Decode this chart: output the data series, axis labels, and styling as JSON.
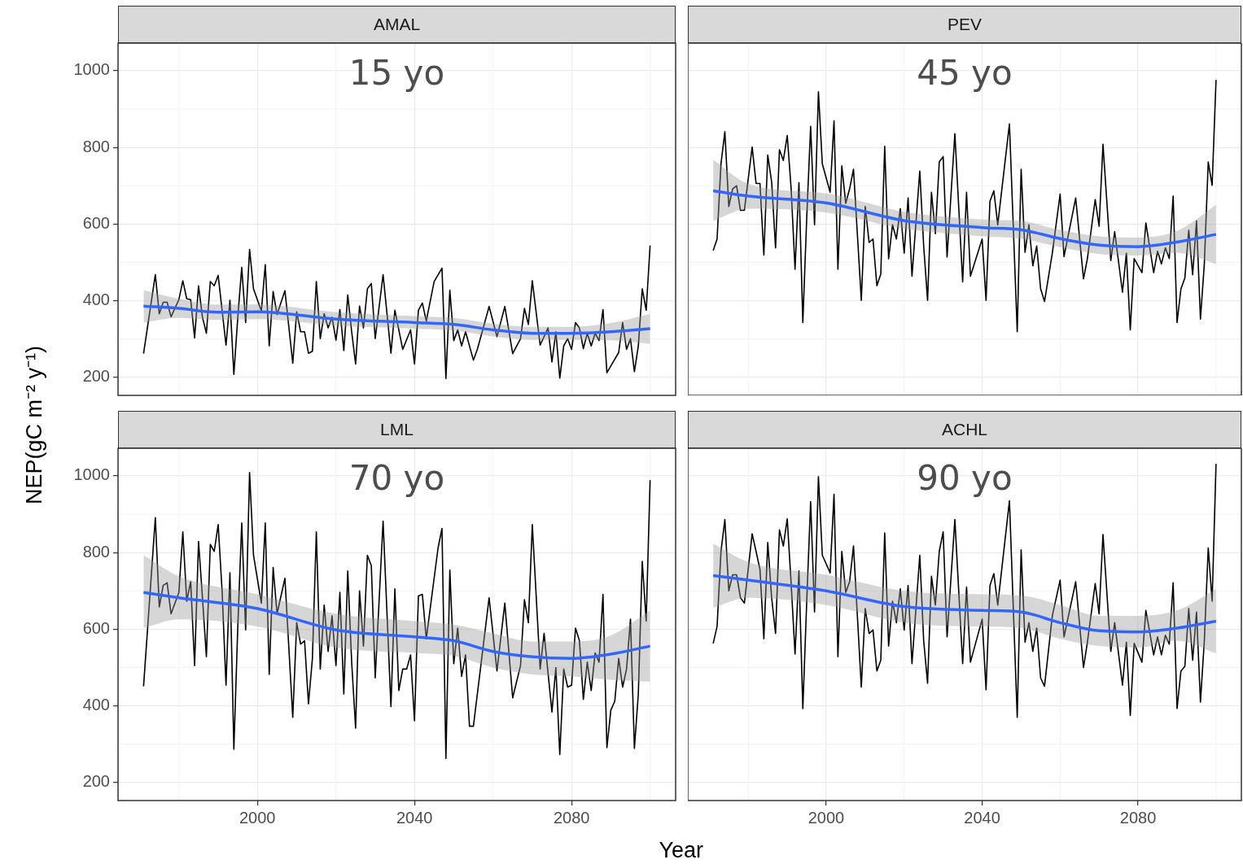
{
  "chart_data": [
    {
      "type": "line",
      "title": "AMAL",
      "annotations": [
        "15 yo"
      ],
      "xlim": [
        1964.5,
        2106.5
      ],
      "ylim": [
        153,
        1072
      ],
      "xticks": [
        2000,
        2040,
        2080
      ],
      "yticks": [
        200,
        400,
        600,
        800,
        1000
      ],
      "grid": true,
      "legend": false,
      "marker": "none",
      "line_style": "solid",
      "tick_labels": "y",
      "series": [
        {
          "color": "#000000",
          "x": [
            1971,
            1974,
            1975,
            1976,
            1977,
            1978,
            1980,
            1981,
            1982,
            1983,
            1984,
            1985,
            1986,
            1987,
            1988,
            1989,
            1990,
            1991,
            1992,
            1993,
            1994,
            1995,
            1996,
            1997,
            1998,
            1999,
            2001,
            2002,
            2003,
            2004,
            2005,
            2007,
            2009,
            2010,
            2011,
            2012,
            2013,
            2014,
            2015,
            2016,
            2017,
            2018,
            2019,
            2020,
            2021,
            2022,
            2023,
            2024,
            2025,
            2026,
            2027,
            2028,
            2029,
            2030,
            2032,
            2034,
            2035,
            2037,
            2039,
            2040,
            2041,
            2042,
            2043,
            2045,
            2047,
            2048,
            2049,
            2050,
            2051,
            2052,
            2053,
            2055,
            2056,
            2059,
            2061,
            2063,
            2065,
            2067,
            2068,
            2069,
            2070,
            2072,
            2074,
            2075,
            2076,
            2077,
            2078,
            2079,
            2080,
            2081,
            2082,
            2083,
            2084,
            2085,
            2086,
            2087,
            2088,
            2089,
            2092,
            2093,
            2094,
            2095,
            2096,
            2097,
            2098,
            2099,
            2100
          ],
          "values": [
            262,
            468,
            366,
            396,
            396,
            358,
            403,
            452,
            405,
            403,
            303,
            439,
            357,
            315,
            450,
            439,
            466,
            375,
            284,
            401,
            208,
            357,
            487,
            343,
            534,
            431,
            373,
            494,
            282,
            424,
            364,
            426,
            237,
            371,
            319,
            319,
            263,
            268,
            450,
            301,
            366,
            329,
            357,
            297,
            377,
            270,
            415,
            319,
            235,
            386,
            329,
            431,
            445,
            301,
            468,
            263,
            375,
            273,
            324,
            235,
            375,
            394,
            347,
            450,
            485,
            197,
            427,
            296,
            324,
            282,
            319,
            245,
            273,
            385,
            306,
            385,
            262,
            301,
            380,
            338,
            452,
            284,
            329,
            240,
            319,
            198,
            282,
            301,
            273,
            343,
            329,
            275,
            315,
            282,
            315,
            296,
            377,
            212,
            265,
            343,
            273,
            301,
            215,
            282,
            431,
            375,
            544
          ]
        },
        {
          "color": "#3366ff",
          "x": [
            1971,
            1980,
            1990,
            2000,
            2020,
            2040,
            2050,
            2060,
            2070,
            2080,
            2090,
            2100
          ],
          "values": [
            386,
            380,
            370,
            371,
            352,
            343,
            338,
            324,
            315,
            315,
            319,
            327
          ],
          "lower": [
            343,
            355,
            350,
            352,
            335,
            327,
            322,
            307,
            298,
            298,
            297,
            287
          ],
          "upper": [
            428,
            405,
            390,
            390,
            370,
            360,
            355,
            340,
            332,
            332,
            342,
            366
          ]
        }
      ]
    },
    {
      "type": "line",
      "title": "PEV",
      "annotations": [
        "45 yo"
      ],
      "xlim": [
        1964.5,
        2106.5
      ],
      "ylim": [
        153,
        1072
      ],
      "xticks": [
        2000,
        2040,
        2080
      ],
      "yticks": [
        200,
        400,
        600,
        800,
        1000
      ],
      "grid": true,
      "legend": false,
      "marker": "none",
      "line_style": "solid",
      "tick_labels": false,
      "series": [
        {
          "color": "#000000",
          "x": [
            1971,
            1972,
            1973,
            1974,
            1975,
            1976,
            1977,
            1978,
            1979,
            1981,
            1982,
            1983,
            1984,
            1985,
            1986,
            1987,
            1988,
            1989,
            1990,
            1991,
            1992,
            1993,
            1994,
            1995,
            1996,
            1997,
            1998,
            1999,
            2001,
            2002,
            2003,
            2004,
            2005,
            2006,
            2007,
            2009,
            2010,
            2011,
            2012,
            2013,
            2014,
            2015,
            2016,
            2017,
            2018,
            2019,
            2020,
            2021,
            2022,
            2024,
            2025,
            2026,
            2027,
            2028,
            2029,
            2030,
            2031,
            2033,
            2035,
            2036,
            2037,
            2040,
            2041,
            2042,
            2043,
            2044,
            2047,
            2049,
            2050,
            2051,
            2052,
            2053,
            2054,
            2055,
            2056,
            2058,
            2060,
            2061,
            2064,
            2066,
            2067,
            2069,
            2070,
            2071,
            2073,
            2074,
            2076,
            2077,
            2078,
            2079,
            2081,
            2082,
            2084,
            2085,
            2086,
            2087,
            2088,
            2089,
            2090,
            2091,
            2092,
            2093,
            2094,
            2095,
            2096,
            2097,
            2098,
            2099,
            2100
          ],
          "values": [
            531,
            561,
            757,
            841,
            646,
            692,
            700,
            636,
            636,
            801,
            706,
            706,
            519,
            780,
            710,
            538,
            794,
            766,
            831,
            692,
            482,
            708,
            343,
            617,
            855,
            598,
            945,
            757,
            683,
            869,
            482,
            752,
            654,
            692,
            743,
            401,
            646,
            552,
            561,
            439,
            470,
            803,
            509,
            598,
            561,
            640,
            524,
            668,
            464,
            738,
            543,
            401,
            683,
            575,
            762,
            776,
            514,
            836,
            449,
            683,
            464,
            561,
            401,
            659,
            687,
            598,
            861,
            319,
            743,
            526,
            598,
            491,
            543,
            431,
            398,
            524,
            678,
            515,
            668,
            457,
            510,
            664,
            594,
            808,
            505,
            580,
            422,
            524,
            324,
            510,
            473,
            603,
            473,
            529,
            496,
            538,
            510,
            673,
            343,
            431,
            459,
            584,
            468,
            608,
            352,
            496,
            762,
            701,
            976
          ]
        },
        {
          "color": "#3366ff",
          "x": [
            1971,
            1980,
            2000,
            2020,
            2040,
            2050,
            2060,
            2070,
            2080,
            2090,
            2100
          ],
          "values": [
            687,
            673,
            655,
            609,
            591,
            585,
            562,
            545,
            541,
            553,
            573
          ],
          "lower": [
            608,
            640,
            630,
            588,
            568,
            562,
            540,
            522,
            518,
            525,
            496
          ],
          "upper": [
            768,
            705,
            680,
            632,
            612,
            608,
            585,
            568,
            565,
            582,
            650
          ]
        }
      ]
    },
    {
      "type": "line",
      "title": "LML",
      "annotations": [
        "70 yo"
      ],
      "xlabel": "Year",
      "ylabel": "NEP(gC m⁻² y⁻¹)",
      "xlim": [
        1964.5,
        2106.5
      ],
      "ylim": [
        153,
        1072
      ],
      "xticks": [
        2000,
        2040,
        2080
      ],
      "yticks": [
        200,
        400,
        600,
        800,
        1000
      ],
      "grid": true,
      "legend": false,
      "marker": "none",
      "line_style": "solid",
      "series": [
        {
          "color": "#000000",
          "x": [
            1971,
            1974,
            1975,
            1976,
            1977,
            1978,
            1980,
            1981,
            1982,
            1983,
            1984,
            1985,
            1986,
            1987,
            1988,
            1989,
            1990,
            1991,
            1992,
            1993,
            1994,
            1995,
            1996,
            1997,
            1998,
            1999,
            2001,
            2002,
            2003,
            2004,
            2005,
            2007,
            2009,
            2010,
            2011,
            2012,
            2013,
            2014,
            2015,
            2016,
            2017,
            2018,
            2019,
            2020,
            2021,
            2022,
            2023,
            2024,
            2025,
            2026,
            2027,
            2028,
            2029,
            2030,
            2032,
            2034,
            2035,
            2036,
            2037,
            2038,
            2039,
            2040,
            2041,
            2042,
            2043,
            2046,
            2047,
            2048,
            2049,
            2050,
            2051,
            2052,
            2053,
            2054,
            2055,
            2057,
            2059,
            2061,
            2063,
            2065,
            2067,
            2068,
            2069,
            2070,
            2072,
            2073,
            2075,
            2076,
            2077,
            2078,
            2079,
            2080,
            2081,
            2082,
            2083,
            2084,
            2085,
            2086,
            2087,
            2088,
            2089,
            2090,
            2091,
            2092,
            2093,
            2094,
            2095,
            2096,
            2097,
            2098,
            2099,
            2100
          ],
          "values": [
            451,
            891,
            658,
            714,
            721,
            640,
            696,
            854,
            673,
            724,
            505,
            829,
            682,
            528,
            821,
            803,
            873,
            700,
            454,
            747,
            287,
            607,
            877,
            598,
            1009,
            793,
            668,
            877,
            482,
            761,
            640,
            733,
            370,
            617,
            561,
            570,
            405,
            524,
            854,
            496,
            663,
            542,
            635,
            505,
            696,
            431,
            752,
            514,
            342,
            700,
            556,
            793,
            766,
            473,
            882,
            398,
            705,
            440,
            496,
            496,
            533,
            361,
            687,
            691,
            575,
            812,
            863,
            263,
            754,
            510,
            603,
            477,
            533,
            347,
            347,
            514,
            682,
            491,
            668,
            421,
            505,
            677,
            617,
            873,
            496,
            589,
            384,
            500,
            273,
            496,
            449,
            454,
            603,
            570,
            417,
            514,
            440,
            538,
            514,
            691,
            291,
            389,
            412,
            524,
            449,
            496,
            626,
            289,
            431,
            777,
            621,
            989
          ]
        },
        {
          "color": "#3366ff",
          "x": [
            1971,
            1980,
            2000,
            2020,
            2040,
            2050,
            2060,
            2070,
            2080,
            2090,
            2100
          ],
          "values": [
            696,
            682,
            654,
            598,
            580,
            570,
            542,
            528,
            524,
            535,
            556
          ],
          "lower": [
            603,
            626,
            607,
            552,
            538,
            530,
            500,
            482,
            477,
            468,
            463
          ],
          "upper": [
            793,
            738,
            691,
            640,
            621,
            612,
            589,
            568,
            568,
            584,
            649
          ]
        }
      ]
    },
    {
      "type": "line",
      "title": "ACHL",
      "annotations": [
        "90 yo"
      ],
      "xlim": [
        1964.5,
        2106.5
      ],
      "ylim": [
        153,
        1072
      ],
      "xticks": [
        2000,
        2040,
        2080
      ],
      "yticks": [
        200,
        400,
        600,
        800,
        1000
      ],
      "grid": true,
      "legend": false,
      "marker": "none",
      "line_style": "solid",
      "tick_labels": "x",
      "series": [
        {
          "color": "#000000",
          "x": [
            1971,
            1972,
            1973,
            1974,
            1975,
            1976,
            1977,
            1978,
            1979,
            1981,
            1982,
            1983,
            1984,
            1985,
            1986,
            1987,
            1988,
            1989,
            1990,
            1991,
            1992,
            1993,
            1994,
            1995,
            1996,
            1997,
            1998,
            1999,
            2001,
            2002,
            2003,
            2004,
            2005,
            2006,
            2007,
            2009,
            2010,
            2011,
            2012,
            2013,
            2014,
            2015,
            2016,
            2017,
            2018,
            2019,
            2020,
            2021,
            2022,
            2024,
            2025,
            2026,
            2027,
            2028,
            2029,
            2030,
            2031,
            2033,
            2035,
            2036,
            2037,
            2040,
            2041,
            2042,
            2043,
            2044,
            2047,
            2049,
            2050,
            2051,
            2052,
            2053,
            2054,
            2055,
            2056,
            2058,
            2060,
            2061,
            2064,
            2066,
            2067,
            2069,
            2070,
            2071,
            2073,
            2074,
            2076,
            2077,
            2078,
            2079,
            2081,
            2082,
            2084,
            2085,
            2086,
            2087,
            2088,
            2089,
            2090,
            2091,
            2092,
            2093,
            2094,
            2095,
            2096,
            2097,
            2098,
            2099,
            2100
          ],
          "values": [
            563,
            607,
            803,
            886,
            700,
            742,
            742,
            682,
            668,
            849,
            803,
            756,
            575,
            826,
            682,
            589,
            859,
            817,
            888,
            719,
            535,
            752,
            393,
            673,
            933,
            645,
            998,
            793,
            747,
            952,
            528,
            803,
            696,
            724,
            817,
            449,
            654,
            589,
            598,
            491,
            519,
            851,
            556,
            673,
            617,
            705,
            598,
            714,
            510,
            793,
            570,
            459,
            738,
            663,
            803,
            854,
            580,
            886,
            510,
            710,
            514,
            626,
            442,
            714,
            745,
            663,
            935,
            370,
            807,
            566,
            617,
            542,
            603,
            473,
            451,
            635,
            728,
            580,
            724,
            500,
            566,
            719,
            640,
            847,
            542,
            617,
            454,
            566,
            375,
            563,
            514,
            649,
            533,
            580,
            533,
            584,
            561,
            721,
            393,
            491,
            503,
            654,
            519,
            645,
            410,
            570,
            812,
            673,
            1031
          ]
        },
        {
          "color": "#3366ff",
          "x": [
            1971,
            1980,
            2000,
            2020,
            2040,
            2050,
            2060,
            2070,
            2080,
            2090,
            2100
          ],
          "values": [
            740,
            728,
            700,
            659,
            649,
            645,
            617,
            596,
            593,
            603,
            621
          ],
          "lower": [
            656,
            682,
            663,
            617,
            607,
            603,
            575,
            556,
            552,
            570,
            537
          ],
          "upper": [
            823,
            775,
            742,
            700,
            691,
            688,
            663,
            635,
            635,
            649,
            705
          ]
        }
      ]
    }
  ]
}
